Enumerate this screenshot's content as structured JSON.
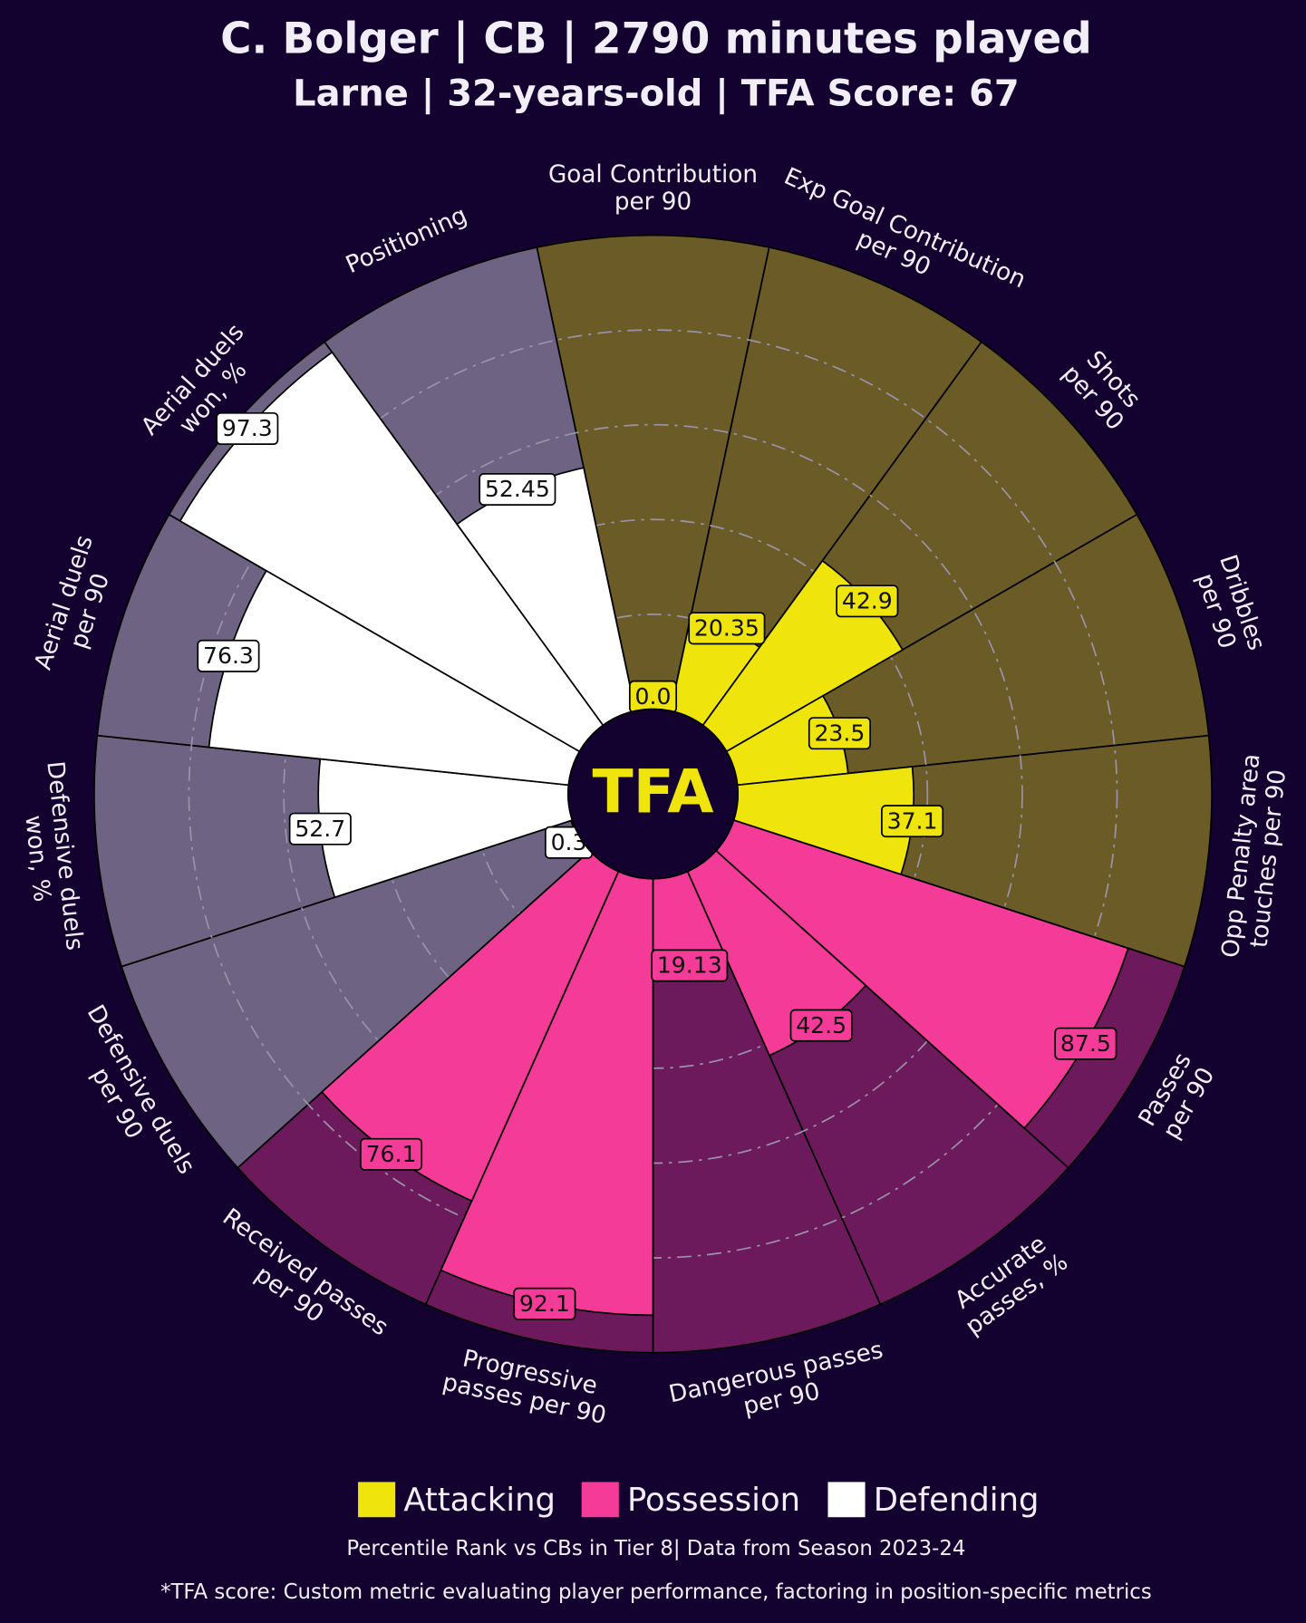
{
  "chart_data": {
    "type": "pizza",
    "title": "C. Bolger | CB | 2790 minutes played",
    "subtitle": "Larne | 32-years-old | TFA Score: 67",
    "center_logo": "TFA",
    "rlim": [
      0,
      100
    ],
    "rticks": [
      20,
      40,
      60,
      80
    ],
    "grid": true,
    "series": [
      {
        "name": "Attacking",
        "color": "#efe40b",
        "background": "#6b5b27",
        "categories": [
          "Goal Contribution\nper 90",
          "Exp Goal Contribution\nper 90",
          "Shots\nper 90",
          "Dribbles\nper 90",
          "Opp Penalty area\ntouches per 90"
        ],
        "values": [
          0,
          20.35,
          42.9,
          23.5,
          37.1
        ],
        "value_labels": [
          "0.0",
          "20.35",
          "42.9",
          "23.5",
          "37.1"
        ]
      },
      {
        "name": "Possession",
        "color": "#f43b98",
        "background": "#6c1a5b",
        "categories": [
          "Passes\nper 90",
          "Accurate\npasses, %",
          "Dangerous passes\nper 90",
          "Progressive\npasses per 90",
          "Received passes\nper 90"
        ],
        "values": [
          87.5,
          42.5,
          19.13,
          92.1,
          76.1
        ],
        "value_labels": [
          "87.5",
          "42.5",
          "19.13",
          "92.1",
          "76.1"
        ]
      },
      {
        "name": "Defending",
        "color": "#ffffff",
        "background": "#6e6383",
        "categories": [
          "Defensive duels\nper 90",
          "Defensive duels\nwon, %",
          "Aerial duels\nper 90",
          "Aerial duels\nwon, %",
          "Positioning"
        ],
        "values": [
          0.3,
          52.7,
          76.3,
          97.3,
          52.45
        ],
        "value_labels": [
          "0.3",
          "52.7",
          "76.3",
          "97.3",
          "52.45"
        ]
      }
    ],
    "notes": [
      "Percentile Rank vs CBs in Tier 8| Data from Season 2023-24",
      "*TFA score: Custom metric evaluating player performance, factoring in position-specific metrics"
    ]
  }
}
